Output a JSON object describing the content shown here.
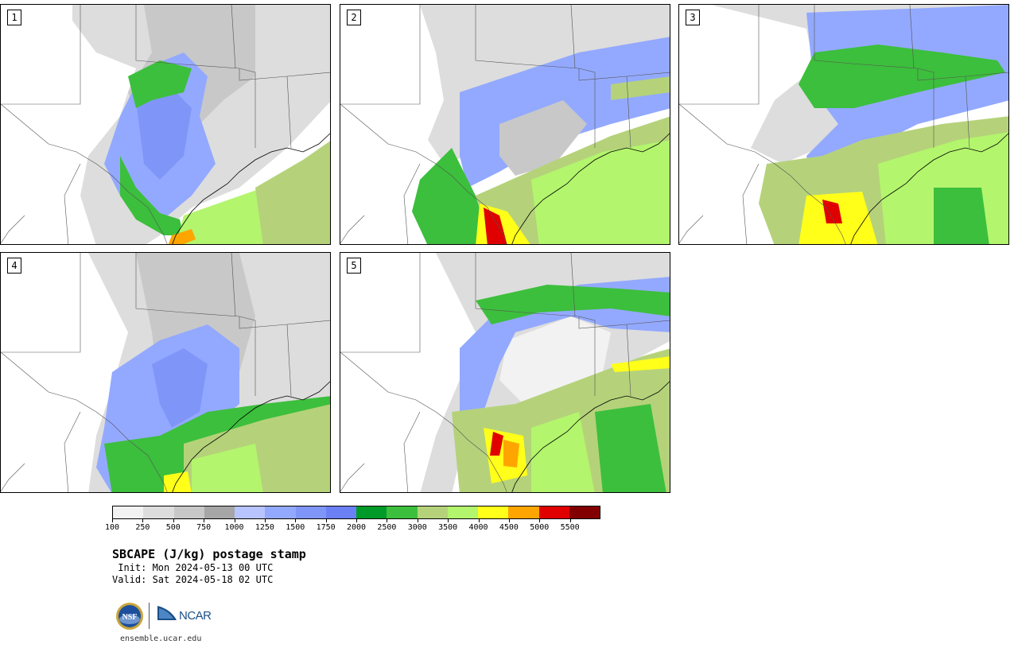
{
  "panels": [
    {
      "label": "1"
    },
    {
      "label": "2"
    },
    {
      "label": "3"
    },
    {
      "label": "4"
    },
    {
      "label": "5"
    }
  ],
  "colorbar": {
    "colors": [
      "#f2f2f2",
      "#dddddd",
      "#c8c8c8",
      "#a6a6a6",
      "#b8c4ff",
      "#93a9ff",
      "#7f96f8",
      "#6b80f5",
      "#009a28",
      "#3cbf3c",
      "#b5d27a",
      "#b3f56d",
      "#ffff1a",
      "#ffa500",
      "#e00000",
      "#820000"
    ],
    "tick_labels": [
      "100",
      "250",
      "500",
      "750",
      "1000",
      "1250",
      "1500",
      "1750",
      "2000",
      "2500",
      "3000",
      "3500",
      "4000",
      "4500",
      "5000",
      "5500"
    ]
  },
  "title": "SBCAPE (J/kg) postage stamp",
  "init": " Init: Mon 2024-05-13 00 UTC",
  "valid": "Valid: Sat 2024-05-18 02 UTC",
  "logos": {
    "nsf": "NSF",
    "ncar": "NCAR"
  },
  "url": "ensemble.ucar.edu"
}
